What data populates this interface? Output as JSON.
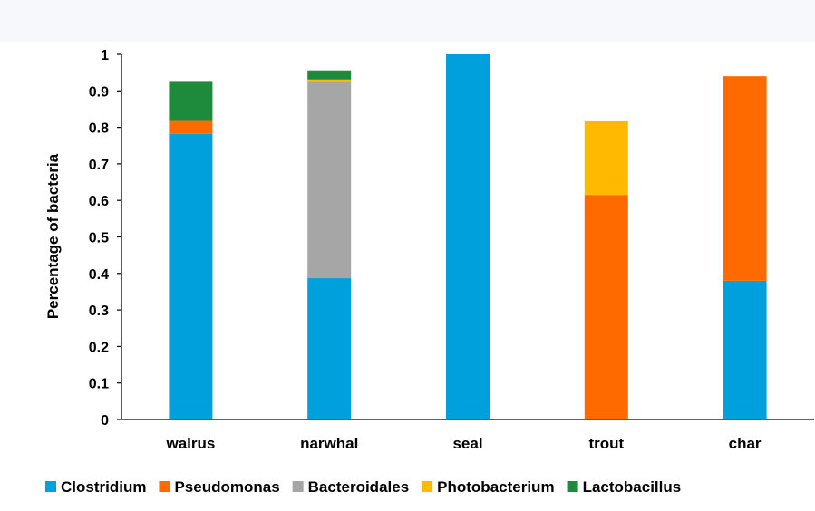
{
  "chart_data": {
    "type": "bar",
    "stacked": true,
    "categories": [
      "walrus",
      "narwhal",
      "seal",
      "trout",
      "char"
    ],
    "ylabel": "Percentage of bacteria",
    "xlabel": "",
    "ylim": [
      0,
      1
    ],
    "yticks": [
      0,
      0.1,
      0.2,
      0.3,
      0.4,
      0.5,
      0.6,
      0.7,
      0.8,
      0.9,
      1
    ],
    "ytick_labels": [
      "0",
      "0.1",
      "0.2",
      "0.3",
      "0.4",
      "0.5",
      "0.6",
      "0.7",
      "0.8",
      "0.9",
      "1"
    ],
    "grid": false,
    "legend_position": "bottom",
    "series": [
      {
        "name": "Clostridium",
        "color": "#00a0dc",
        "values": [
          0.782,
          0.387,
          1.0,
          0,
          0.38
        ]
      },
      {
        "name": "Pseudomonas",
        "color": "#ff6a00",
        "values": [
          0.038,
          0,
          0,
          0.615,
          0.56
        ]
      },
      {
        "name": "Bacteroidales",
        "color": "#a6a6a6",
        "values": [
          0,
          0.54,
          0,
          0,
          0
        ]
      },
      {
        "name": "Photobacterium",
        "color": "#ffb900",
        "values": [
          0,
          0.004,
          0,
          0.204,
          0
        ]
      },
      {
        "name": "Lactobacillus",
        "color": "#1e8a3c",
        "values": [
          0.107,
          0.025,
          0,
          0,
          0
        ]
      }
    ]
  }
}
